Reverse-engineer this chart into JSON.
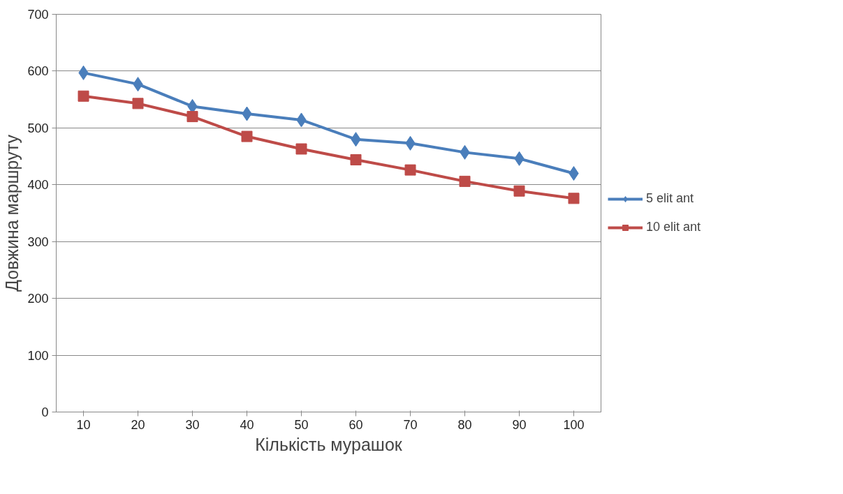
{
  "chart_data": {
    "type": "line",
    "xlabel": "Кількість мурашок",
    "ylabel": "Довжина маршруту",
    "categories": [
      "10",
      "20",
      "30",
      "40",
      "50",
      "60",
      "70",
      "80",
      "90",
      "100"
    ],
    "series": [
      {
        "name": "5 elit ant",
        "color": "#4a7ebb",
        "marker": "diamond",
        "values": [
          597,
          577,
          538,
          525,
          514,
          480,
          473,
          457,
          446,
          420
        ]
      },
      {
        "name": "10 elit ant",
        "color": "#be4b48",
        "marker": "square",
        "values": [
          556,
          543,
          520,
          485,
          463,
          444,
          426,
          406,
          389,
          376
        ]
      }
    ],
    "ylim": [
      0,
      700
    ],
    "yticks": [
      0,
      100,
      200,
      300,
      400,
      500,
      600,
      700
    ],
    "grid": "y",
    "legend": "right",
    "line_style": "solid"
  }
}
